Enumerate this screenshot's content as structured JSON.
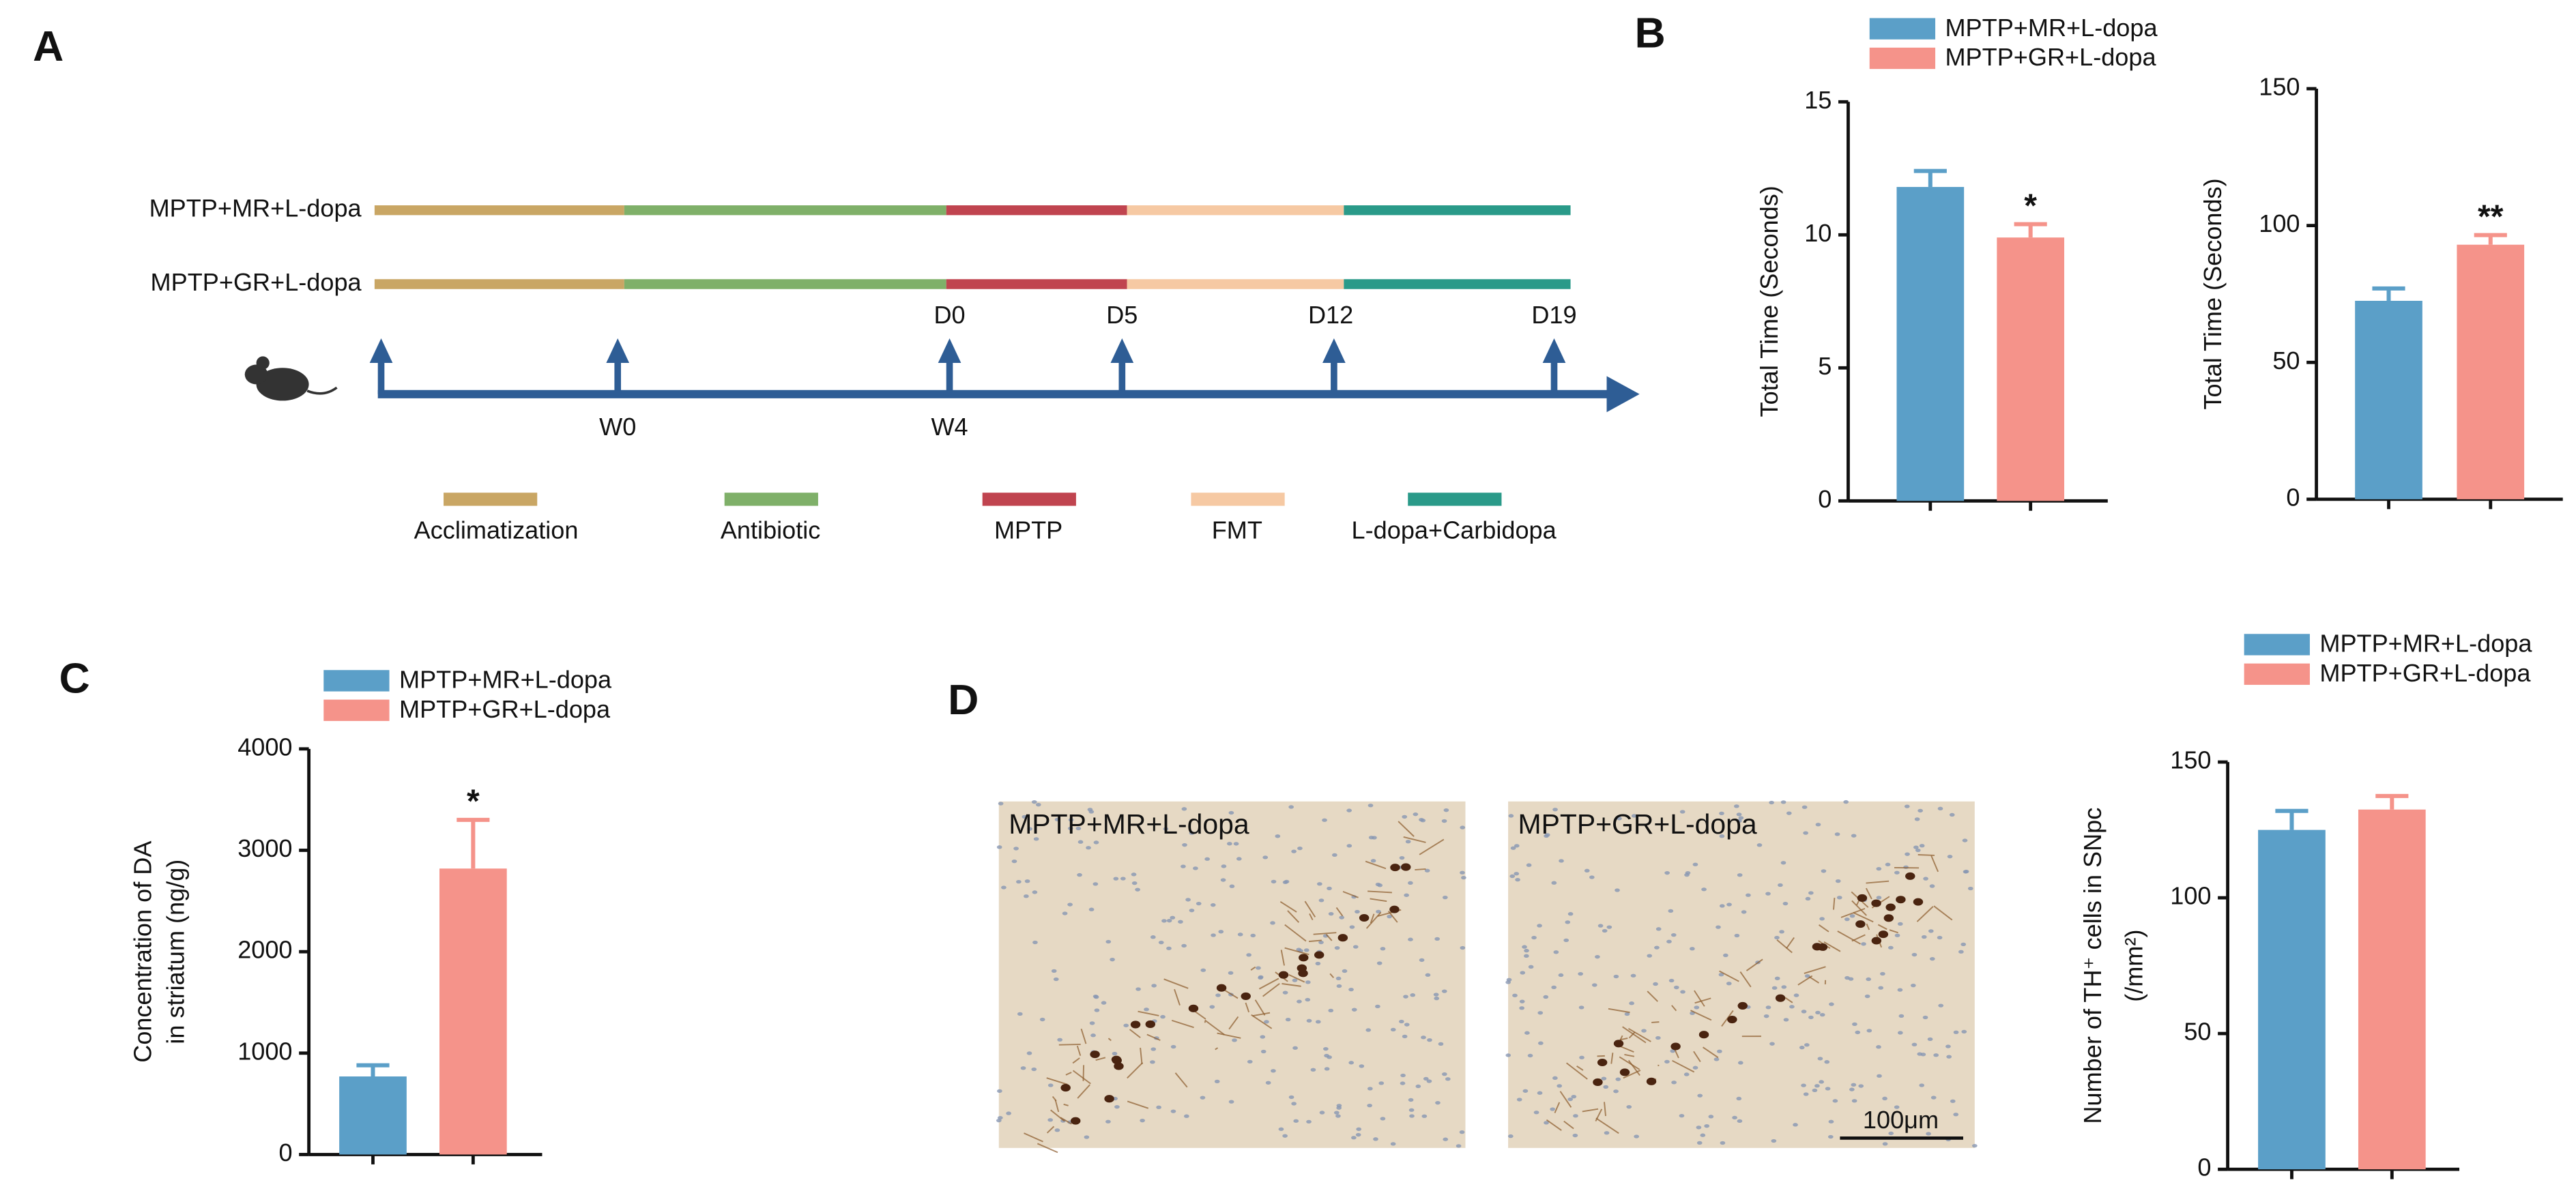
{
  "panels": [
    "A",
    "B",
    "C",
    "D"
  ],
  "timeline": {
    "rows": [
      "MPTP+MR+L-dopa",
      "MPTP+GR+L-dopa"
    ],
    "phases": [
      {
        "name": "Acclimatization",
        "color": "#c9a664"
      },
      {
        "name": "Antibiotic",
        "color": "#7fb069"
      },
      {
        "name": "MPTP",
        "color": "#c0444f"
      },
      {
        "name": "FMT",
        "color": "#f6c9a3"
      },
      {
        "name": "L-dopa+Carbidopa",
        "color": "#2a9a89"
      }
    ],
    "day_marks": [
      "D0",
      "D5",
      "D12",
      "D19"
    ],
    "week_marks": [
      "W0",
      "W4"
    ]
  },
  "micrographs": {
    "labels": [
      "MPTP+MR+L-dopa",
      "MPTP+GR+L-dopa"
    ],
    "scale_bar": "100μm"
  },
  "chart_data": [
    {
      "type": "bar",
      "y_label": [
        "Total Time (Seconds)"
      ],
      "ylim": [
        0,
        15
      ],
      "yticks": [
        0,
        5,
        10,
        15
      ],
      "series": [
        {
          "name": "MPTP+MR+L-dopa",
          "color": "#5b9fc8",
          "values": [
            11.8
          ],
          "errors": [
            0.6
          ]
        },
        {
          "name": "MPTP+GR+L-dopa",
          "color": "#f5938a",
          "values": [
            9.9
          ],
          "errors": [
            0.5
          ],
          "annotation": "*"
        }
      ]
    },
    {
      "type": "bar",
      "y_label": [
        "Total Time (Seconds)"
      ],
      "ylim": [
        0,
        150
      ],
      "yticks": [
        0,
        50,
        100,
        150
      ],
      "series": [
        {
          "color": "#5b9fc8",
          "values": [
            72.5
          ],
          "errors": [
            4.5
          ]
        },
        {
          "color": "#f5938a",
          "values": [
            93
          ],
          "errors": [
            3.5
          ],
          "annotation": "**"
        }
      ]
    },
    {
      "type": "bar",
      "y_label": [
        "Concentration of DA",
        "in striatum (ng/g)"
      ],
      "ylim": [
        0,
        4000
      ],
      "yticks": [
        0,
        1000,
        2000,
        3000,
        4000
      ],
      "series": [
        {
          "name": "MPTP+MR+L-dopa",
          "color": "#5b9fc8",
          "values": [
            770
          ],
          "errors": [
            110
          ]
        },
        {
          "name": "MPTP+GR+L-dopa",
          "color": "#f5938a",
          "values": [
            2820
          ],
          "errors": [
            480
          ],
          "annotation": "*"
        }
      ]
    },
    {
      "type": "bar",
      "y_label": [
        "Number of TH⁺ cells in SNpc",
        "(/mm²)"
      ],
      "ylim": [
        0,
        150
      ],
      "yticks": [
        0,
        50,
        100,
        150
      ],
      "series": [
        {
          "name": "MPTP+MR+L-dopa",
          "color": "#5b9fc8",
          "values": [
            125
          ],
          "errors": [
            7
          ]
        },
        {
          "name": "MPTP+GR+L-dopa",
          "color": "#f5938a",
          "values": [
            132.5
          ],
          "errors": [
            5
          ]
        }
      ]
    }
  ]
}
